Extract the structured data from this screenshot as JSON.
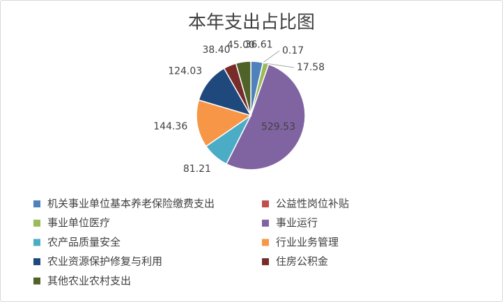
{
  "chart_data": {
    "type": "pie",
    "title": "本年支出占比图",
    "categories": [
      "机关事业单位基本养老保险缴费支出",
      "公益性岗位补贴",
      "事业单位医疗",
      "事业运行",
      "农产品质量安全",
      "行业业务管理",
      "农业资源保护修复与利用",
      "住房公积金",
      "其他农业农村支出"
    ],
    "values": [
      36.61,
      0.17,
      17.58,
      529.53,
      81.21,
      144.36,
      124.03,
      38.4,
      45
    ],
    "value_labels": [
      "36.61",
      "0.17",
      "17.58",
      "529.53",
      "81.21",
      "144.36",
      "124.03",
      "38.40",
      "45.00"
    ],
    "colors": [
      "#4f81bd",
      "#c0504d",
      "#9bbb59",
      "#8064a2",
      "#4bacc6",
      "#f79646",
      "#1f497d",
      "#772c2a",
      "#4f6228"
    ],
    "legend": "bottom"
  }
}
